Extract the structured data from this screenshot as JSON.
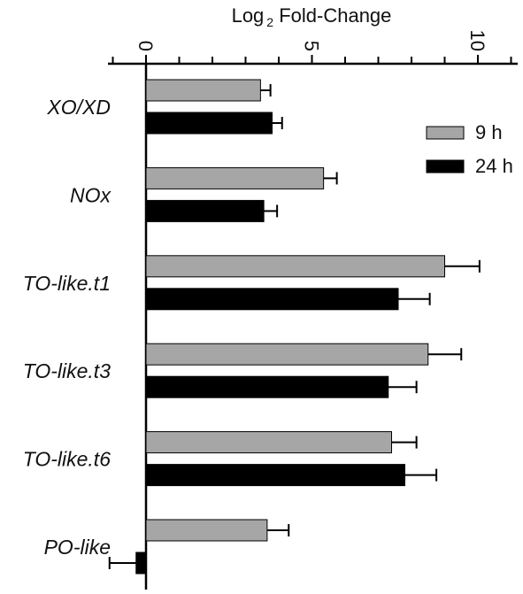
{
  "chart_data": {
    "type": "bar",
    "orientation": "horizontal",
    "title_main": "Log",
    "title_sub": "2",
    "title_rest": " Fold-Change",
    "xlim": [
      0,
      11
    ],
    "x_ticks": [
      0,
      5,
      10
    ],
    "x_tick_labels": [
      "0",
      "5",
      "10"
    ],
    "categories": [
      "XO/XD",
      "NOx",
      "TO-like.t1",
      "TO-like.t3",
      "TO-like.t6",
      "PO-like"
    ],
    "series": [
      {
        "name": "9 h",
        "color": "#a6a6a6",
        "values": [
          3.45,
          5.35,
          9.0,
          8.5,
          7.4,
          3.65
        ],
        "errors": [
          0.3,
          0.4,
          1.05,
          1.0,
          0.75,
          0.65
        ]
      },
      {
        "name": "24 h",
        "color": "#000000",
        "values": [
          3.8,
          3.55,
          7.6,
          7.3,
          7.8,
          -0.3
        ],
        "errors": [
          0.3,
          0.4,
          0.95,
          0.85,
          0.95,
          0.8
        ]
      }
    ],
    "legend_position": "top-right",
    "grid": false
  }
}
